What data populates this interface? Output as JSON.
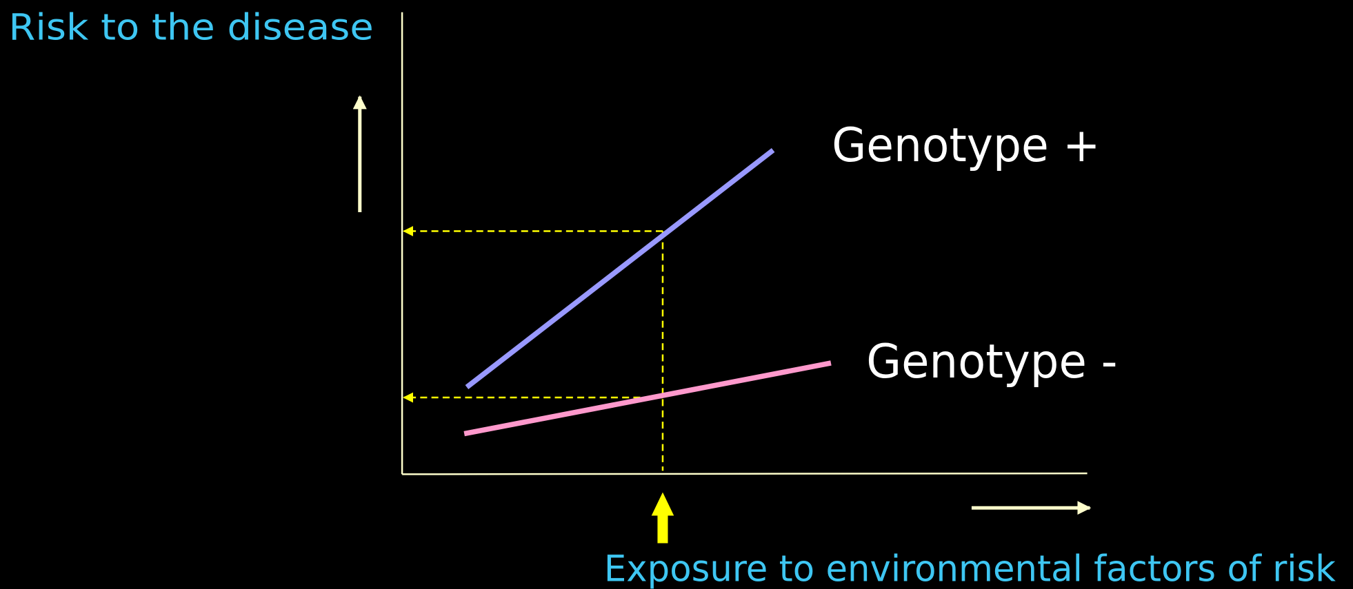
{
  "y_axis_label": "Risk to the disease",
  "x_axis_label": "Exposure to environmental factors of risk",
  "lines": [
    {
      "label": "Genotype +"
    },
    {
      "label": "Genotype -"
    }
  ]
}
